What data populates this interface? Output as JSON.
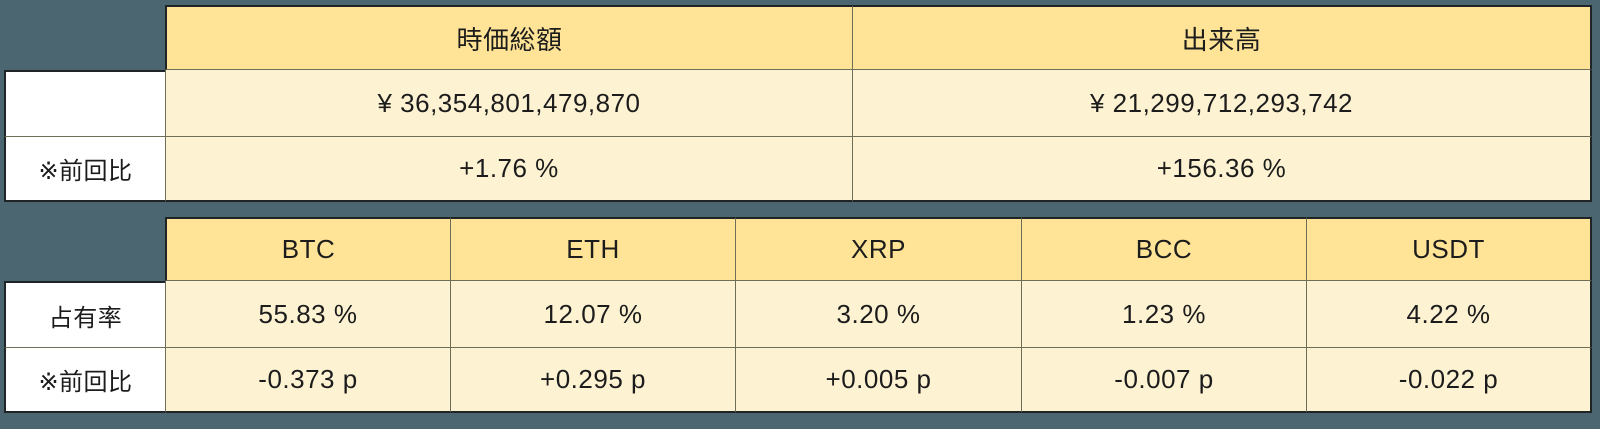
{
  "colors": {
    "page_background": "#4C6671",
    "header_cell_bg": "#FFE396",
    "value_cell_bg": "#FDF2D2",
    "label_cell_bg": "#FFFFFF",
    "inner_grid_line": "#6F6F58",
    "outer_border": "#1F2427",
    "text": "#1C1C1C"
  },
  "chart_data": [
    {
      "type": "table",
      "columns": [
        "時価総額",
        "出来高"
      ],
      "row_labels": [
        "",
        "※前回比"
      ],
      "rows": [
        [
          "¥ 36,354,801,479,870",
          "¥ 21,299,712,293,742"
        ],
        [
          "+1.76 %",
          "+156.36 %"
        ]
      ]
    },
    {
      "type": "table",
      "columns": [
        "BTC",
        "ETH",
        "XRP",
        "BCC",
        "USDT"
      ],
      "row_labels": [
        "占有率",
        "※前回比"
      ],
      "rows": [
        [
          "55.83 %",
          "12.07 %",
          "3.20 %",
          "1.23 %",
          "4.22 %"
        ],
        [
          "-0.373 p",
          "+0.295 p",
          "+0.005 p",
          "-0.007 p",
          "-0.022 p"
        ]
      ]
    }
  ]
}
